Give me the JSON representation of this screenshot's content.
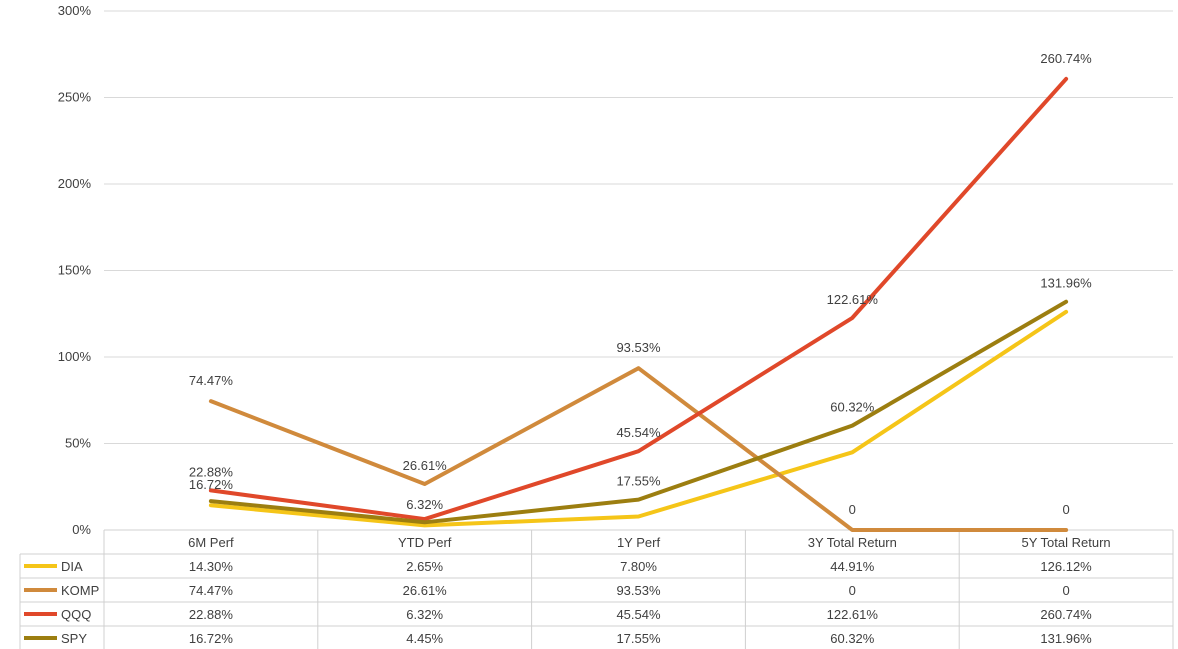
{
  "chart_data": {
    "type": "line",
    "title": "",
    "xlabel": "",
    "ylabel": "",
    "ylim": [
      0,
      300
    ],
    "grid": true,
    "legend_placement": "data-table-bottom",
    "y_ticks": [
      "0%",
      "50%",
      "100%",
      "150%",
      "200%",
      "250%",
      "300%"
    ],
    "categories": [
      "6M Perf",
      "YTD Perf",
      "1Y Perf",
      "3Y Total Return",
      "5Y Total Return"
    ],
    "series": [
      {
        "name": "DIA",
        "color": "#F5C518",
        "values": [
          14.3,
          2.65,
          7.8,
          44.91,
          126.12
        ],
        "table": [
          "14.30%",
          "2.65%",
          "7.80%",
          "44.91%",
          "126.12%"
        ],
        "labels": [
          null,
          null,
          null,
          null,
          null
        ]
      },
      {
        "name": "KOMP",
        "color": "#D08A3C",
        "values": [
          74.47,
          26.61,
          93.53,
          0,
          0
        ],
        "table": [
          "74.47%",
          "26.61%",
          "93.53%",
          "0",
          "0"
        ],
        "labels": [
          "74.47%",
          "26.61%",
          "93.53%",
          "0",
          "0"
        ]
      },
      {
        "name": "QQQ",
        "color": "#E0482A",
        "values": [
          22.88,
          6.32,
          45.54,
          122.61,
          260.74
        ],
        "table": [
          "22.88%",
          "6.32%",
          "45.54%",
          "122.61%",
          "260.74%"
        ],
        "labels": [
          "22.88%",
          "6.32%",
          "45.54%",
          "122.61%",
          "260.74%"
        ]
      },
      {
        "name": "SPY",
        "color": "#9C7E10",
        "values": [
          16.72,
          4.45,
          17.55,
          60.32,
          131.96
        ],
        "table": [
          "16.72%",
          "4.45%",
          "17.55%",
          "60.32%",
          "131.96%"
        ],
        "labels": [
          "16.72%",
          null,
          "17.55%",
          "60.32%",
          "131.96%"
        ]
      }
    ]
  }
}
